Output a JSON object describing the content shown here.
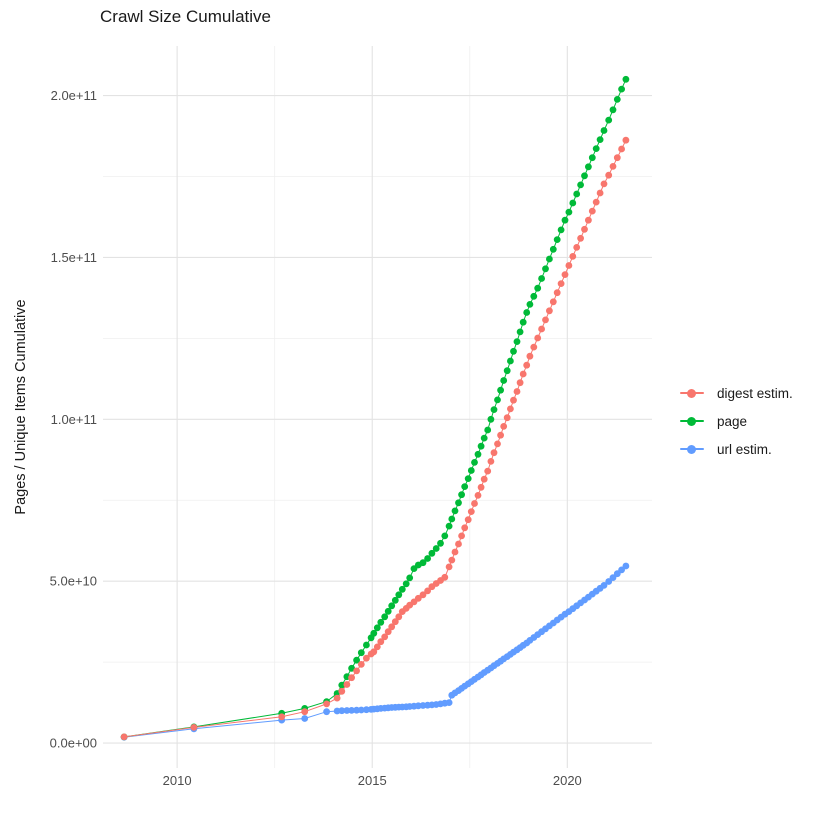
{
  "title": "Crawl Size Cumulative",
  "chart_data": {
    "type": "line",
    "title": "Crawl Size Cumulative",
    "xlabel": "",
    "ylabel": "Pages / Unique Items Cumulative",
    "grid": true,
    "legend_position": "right",
    "x_axis": {
      "lim": [
        2008.1,
        2022.17
      ],
      "major_ticks": [
        2010,
        2015,
        2020
      ],
      "major_tick_labels": [
        "2010",
        "2015",
        "2020"
      ],
      "minor_ticks": [
        2012.5,
        2017.5
      ]
    },
    "y_axis": {
      "units": "1e9 (billions)",
      "lim_e9": [
        -7.7,
        215.3
      ],
      "major_ticks_e9": [
        0,
        50,
        100,
        150,
        200
      ],
      "major_tick_labels": [
        "0.0e+00",
        "5.0e+10",
        "1.0e+11",
        "1.5e+11",
        "2.0e+11"
      ],
      "minor_ticks_e9": [
        25,
        75,
        125,
        175
      ]
    },
    "x": [
      2008.64,
      2010.43,
      2012.68,
      2013.27,
      2013.83,
      2014.1,
      2014.22,
      2014.35,
      2014.47,
      2014.6,
      2014.72,
      2014.85,
      2014.97,
      2015.04,
      2015.13,
      2015.22,
      2015.32,
      2015.41,
      2015.5,
      2015.59,
      2015.68,
      2015.77,
      2015.87,
      2015.96,
      2016.07,
      2016.18,
      2016.3,
      2016.42,
      2016.53,
      2016.64,
      2016.75,
      2016.86,
      2016.97,
      2017.04,
      2017.12,
      2017.21,
      2017.29,
      2017.37,
      2017.46,
      2017.54,
      2017.62,
      2017.71,
      2017.79,
      2017.87,
      2017.96,
      2018.04,
      2018.12,
      2018.21,
      2018.29,
      2018.37,
      2018.46,
      2018.54,
      2018.62,
      2018.71,
      2018.79,
      2018.87,
      2018.96,
      2019.04,
      2019.14,
      2019.24,
      2019.34,
      2019.44,
      2019.54,
      2019.64,
      2019.74,
      2019.84,
      2019.94,
      2020.04,
      2020.14,
      2020.24,
      2020.34,
      2020.44,
      2020.54,
      2020.64,
      2020.74,
      2020.84,
      2020.94,
      2021.06,
      2021.17,
      2021.28,
      2021.39,
      2021.5
    ],
    "series": [
      {
        "name": "digest estim.",
        "color": "#F8766D",
        "values_e9": [
          1.9,
          4.85,
          8.1,
          9.7,
          12.1,
          13.9,
          16.0,
          18.1,
          20.2,
          22.3,
          24.3,
          26.2,
          27.5,
          28.2,
          29.7,
          31.3,
          32.8,
          34.4,
          35.9,
          37.5,
          39.0,
          40.6,
          41.6,
          42.6,
          43.6,
          44.7,
          45.8,
          47.0,
          48.3,
          49.3,
          50.2,
          51.2,
          54.4,
          56.5,
          59.0,
          61.5,
          64.0,
          66.5,
          69.0,
          71.5,
          74.0,
          76.5,
          79.0,
          81.5,
          84.0,
          87.0,
          89.7,
          92.4,
          95.1,
          97.8,
          100.5,
          103.2,
          105.9,
          108.6,
          111.3,
          114.0,
          116.7,
          119.5,
          122.3,
          125.1,
          127.9,
          130.7,
          133.5,
          136.3,
          139.1,
          141.9,
          144.7,
          147.5,
          150.3,
          153.1,
          155.9,
          158.7,
          161.5,
          164.3,
          167.1,
          169.9,
          172.7,
          175.4,
          178.1,
          180.8,
          183.5,
          186.2
        ]
      },
      {
        "name": "page",
        "color": "#00BA38",
        "values_e9": [
          1.9,
          5.0,
          9.2,
          10.7,
          12.8,
          15.3,
          17.9,
          20.5,
          23.1,
          25.6,
          27.9,
          30.3,
          32.5,
          33.9,
          35.6,
          37.3,
          39.0,
          40.7,
          42.4,
          44.1,
          45.8,
          47.5,
          49.2,
          51.0,
          53.9,
          55.0,
          55.7,
          57.0,
          58.6,
          60.1,
          61.7,
          64.0,
          67.0,
          69.2,
          71.7,
          74.2,
          76.7,
          79.2,
          81.7,
          84.2,
          86.7,
          89.2,
          91.7,
          94.2,
          96.7,
          100.0,
          103.0,
          106.0,
          109.0,
          112.0,
          115.0,
          118.0,
          121.0,
          124.0,
          127.0,
          130.0,
          133.0,
          135.5,
          138.0,
          140.5,
          143.5,
          146.5,
          149.5,
          152.5,
          155.5,
          158.5,
          161.5,
          164.0,
          166.8,
          169.6,
          172.4,
          175.2,
          178.0,
          180.8,
          183.6,
          186.4,
          189.2,
          192.4,
          195.6,
          198.8,
          202.0,
          205.0
        ]
      },
      {
        "name": "url estim.",
        "color": "#619CFF",
        "values_e9": [
          1.8,
          4.4,
          7.1,
          7.6,
          9.7,
          9.9,
          10.0,
          10.05,
          10.1,
          10.15,
          10.2,
          10.3,
          10.4,
          10.5,
          10.6,
          10.7,
          10.8,
          10.9,
          11.0,
          11.05,
          11.1,
          11.15,
          11.2,
          11.3,
          11.4,
          11.5,
          11.6,
          11.7,
          11.8,
          11.9,
          12.1,
          12.3,
          12.5,
          14.8,
          15.5,
          16.2,
          16.9,
          17.6,
          18.3,
          19.0,
          19.7,
          20.4,
          21.1,
          21.8,
          22.5,
          23.2,
          23.9,
          24.6,
          25.3,
          26.0,
          26.7,
          27.4,
          28.1,
          28.8,
          29.5,
          30.2,
          30.9,
          31.7,
          32.6,
          33.5,
          34.4,
          35.3,
          36.2,
          37.1,
          38.0,
          38.9,
          39.8,
          40.6,
          41.5,
          42.4,
          43.3,
          44.2,
          45.1,
          46.0,
          46.9,
          47.8,
          48.7,
          49.9,
          51.1,
          52.3,
          53.5,
          54.7
        ]
      }
    ],
    "draw_order": [
      2,
      1,
      0
    ]
  },
  "legend": {
    "items": [
      {
        "label": "digest estim."
      },
      {
        "label": "page"
      },
      {
        "label": "url estim."
      }
    ]
  },
  "style": {
    "grid_major_color": "#e3e3e3",
    "grid_minor_color": "#efefef",
    "tick_label_color": "#4d4d4d",
    "point_radius": 3.4
  }
}
